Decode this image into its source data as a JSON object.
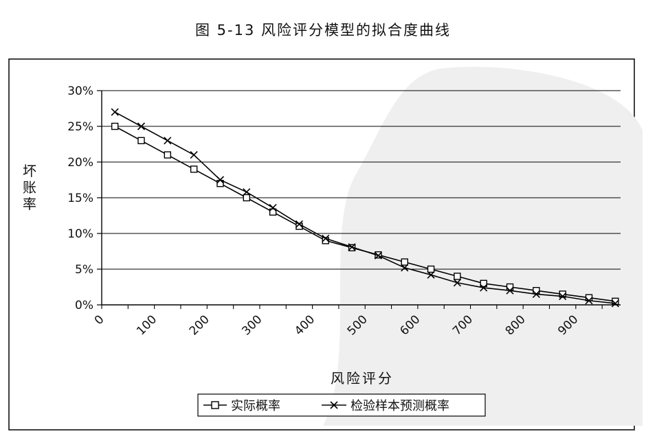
{
  "figure": {
    "title": "图 5-13  风险评分模型的拟合度曲线"
  },
  "chart_data": {
    "type": "line",
    "title": "图 5-13  风险评分模型的拟合度曲线",
    "xlabel": "风险评分",
    "ylabel": "坏账率",
    "x": [
      25,
      75,
      125,
      175,
      225,
      275,
      325,
      375,
      425,
      475,
      525,
      575,
      625,
      675,
      725,
      775,
      825,
      875,
      925,
      975
    ],
    "xlim": [
      0,
      985
    ],
    "ylim": [
      0,
      30
    ],
    "x_ticks": [
      0,
      100,
      200,
      300,
      400,
      500,
      600,
      700,
      800,
      900
    ],
    "y_ticks": [
      0,
      5,
      10,
      15,
      20,
      25,
      30
    ],
    "y_tick_labels": [
      "0%",
      "5%",
      "10%",
      "15%",
      "20%",
      "25%",
      "30%"
    ],
    "grid": "horizontal",
    "legend_position": "bottom",
    "series": [
      {
        "name": "实际概率",
        "marker": "square",
        "color": "#000000",
        "values": [
          25,
          23,
          21,
          19,
          17,
          15,
          13,
          11,
          9,
          8,
          7,
          6,
          5,
          4,
          3,
          2.5,
          2,
          1.5,
          1,
          0.5
        ]
      },
      {
        "name": "检验样本预测概率",
        "marker": "x",
        "color": "#000000",
        "values": [
          27,
          25,
          23,
          21,
          17.5,
          15.8,
          13.6,
          11.3,
          9.3,
          8.1,
          6.9,
          5.2,
          4.2,
          3.1,
          2.4,
          2,
          1.5,
          1.2,
          0.6,
          0.2
        ]
      }
    ]
  }
}
